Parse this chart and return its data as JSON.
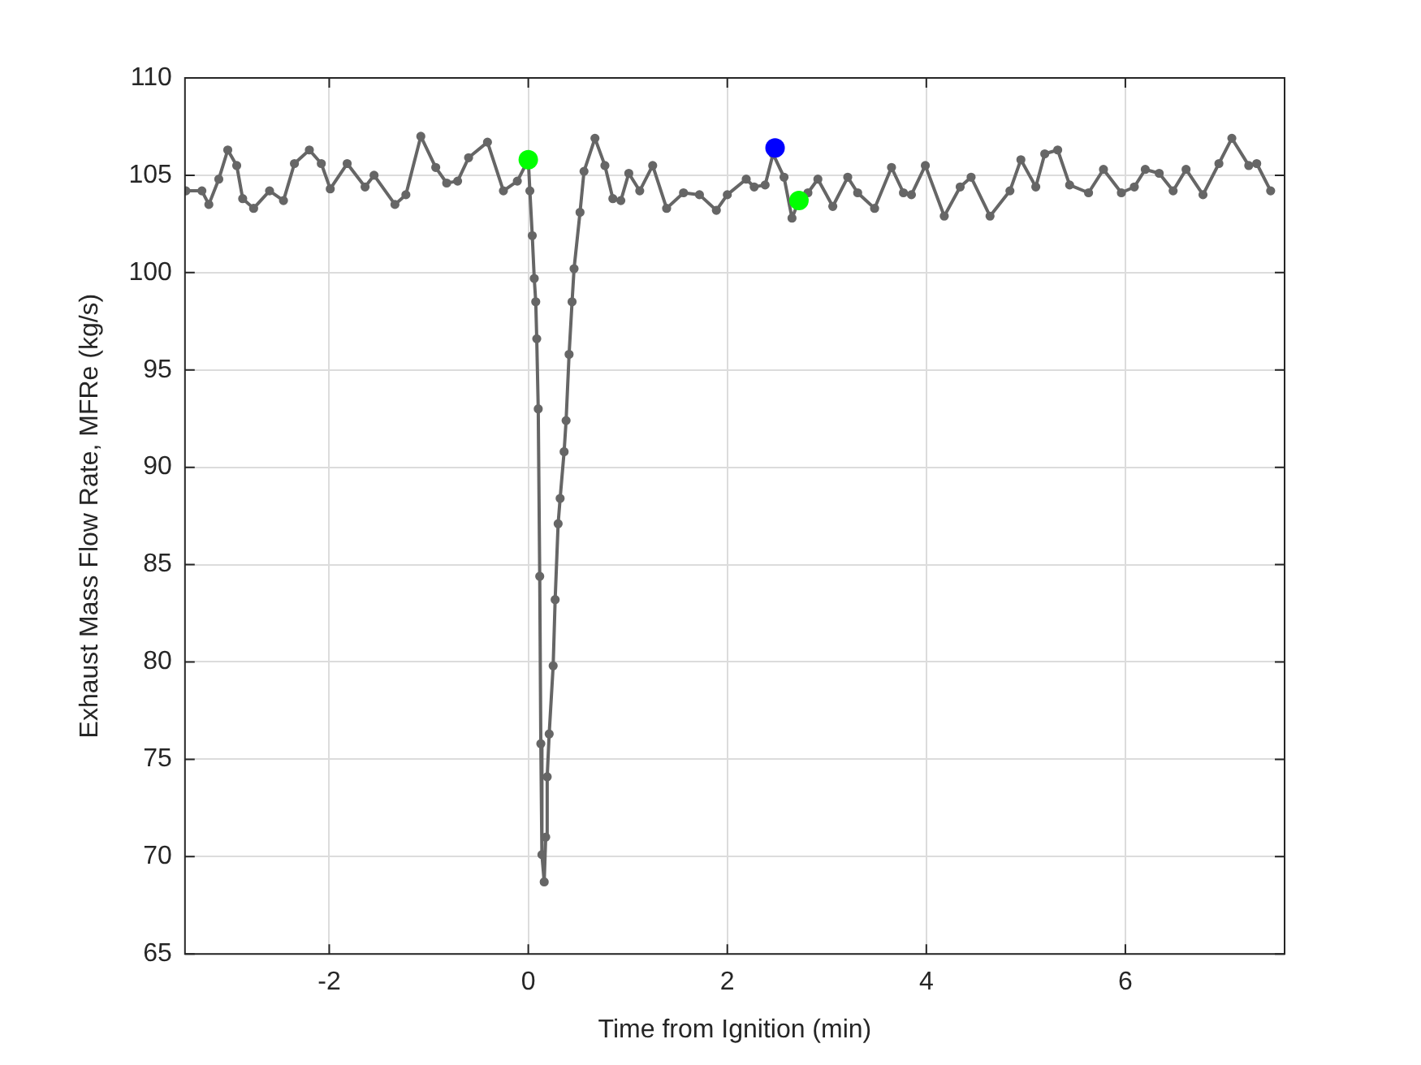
{
  "chart_data": {
    "type": "line",
    "xlabel": "Time from Ignition (min)",
    "ylabel": "Exhaust Mass Flow Rate, MFRe (kg/s)",
    "xlim": [
      -3.45,
      7.6
    ],
    "xticks": [
      -2,
      0,
      2,
      4,
      6
    ],
    "ylim": [
      65,
      110
    ],
    "yticks": [
      65,
      70,
      75,
      80,
      85,
      90,
      95,
      100,
      105,
      110
    ],
    "grid": true,
    "legend": false,
    "marker": "circle",
    "series": [
      {
        "color": "#666666",
        "x": [
          -3.44,
          -3.28,
          -3.21,
          -3.11,
          -3.02,
          -2.93,
          -2.87,
          -2.76,
          -2.6,
          -2.46,
          -2.35,
          -2.2,
          -2.08,
          -1.99,
          -1.82,
          -1.64,
          -1.55,
          -1.34,
          -1.23,
          -1.08,
          -0.93,
          -0.82,
          -0.71,
          -0.6,
          -0.41,
          -0.25,
          -0.11,
          0,
          0.016,
          0.04,
          0.06,
          0.075,
          0.085,
          0.1,
          0.115,
          0.126,
          0.137,
          0.16,
          0.175,
          0.19,
          0.21,
          0.25,
          0.27,
          0.3,
          0.32,
          0.36,
          0.38,
          0.41,
          0.44,
          0.46,
          0.52,
          0.56,
          0.67,
          0.77,
          0.85,
          0.93,
          1.01,
          1.12,
          1.25,
          1.39,
          1.56,
          1.72,
          1.89,
          2,
          2.19,
          2.27,
          2.38,
          2.46,
          2.57,
          2.65,
          2.72,
          2.81,
          2.91,
          3.06,
          3.21,
          3.31,
          3.48,
          3.65,
          3.77,
          3.85,
          3.99,
          4.18,
          4.34,
          4.45,
          4.64,
          4.84,
          4.95,
          5.1,
          5.19,
          5.32,
          5.44,
          5.63,
          5.78,
          5.96,
          6.09,
          6.2,
          6.34,
          6.48,
          6.61,
          6.78,
          6.94,
          7.07,
          7.24,
          7.32,
          7.46
        ],
        "values": [
          104.2,
          104.2,
          103.5,
          104.8,
          106.3,
          105.5,
          103.8,
          103.3,
          104.2,
          103.7,
          105.6,
          106.3,
          105.6,
          104.3,
          105.6,
          104.4,
          105,
          103.5,
          104,
          107,
          105.4,
          104.6,
          104.7,
          105.9,
          106.7,
          104.2,
          104.7,
          105.8,
          104.2,
          101.9,
          99.7,
          98.5,
          96.6,
          93,
          84.4,
          75.8,
          70.1,
          68.7,
          71,
          74.1,
          76.3,
          79.8,
          83.2,
          87.1,
          88.4,
          90.8,
          92.4,
          95.8,
          98.5,
          100.2,
          103.1,
          105.2,
          106.9,
          105.5,
          103.8,
          103.7,
          105.1,
          104.2,
          105.5,
          103.3,
          104.1,
          104,
          103.2,
          104,
          104.8,
          104.4,
          104.5,
          106.1,
          104.9,
          102.8,
          103.7,
          104.1,
          104.8,
          103.4,
          104.9,
          104.1,
          103.3,
          105.4,
          104.1,
          104,
          105.5,
          102.9,
          104.4,
          104.9,
          102.9,
          104.2,
          105.8,
          104.4,
          106.1,
          106.3,
          104.5,
          104.1,
          105.3,
          104.1,
          104.4,
          105.3,
          105.1,
          104.2,
          105.3,
          104,
          105.6,
          106.9,
          105.5,
          105.6,
          104.2
        ]
      },
      {
        "type": "scatter",
        "color": "#00ff00",
        "x": [
          0,
          2.72
        ],
        "values": [
          105.8,
          103.7
        ]
      },
      {
        "type": "scatter",
        "color": "#0000ff",
        "x": [
          2.48
        ],
        "values": [
          106.4
        ]
      }
    ]
  }
}
